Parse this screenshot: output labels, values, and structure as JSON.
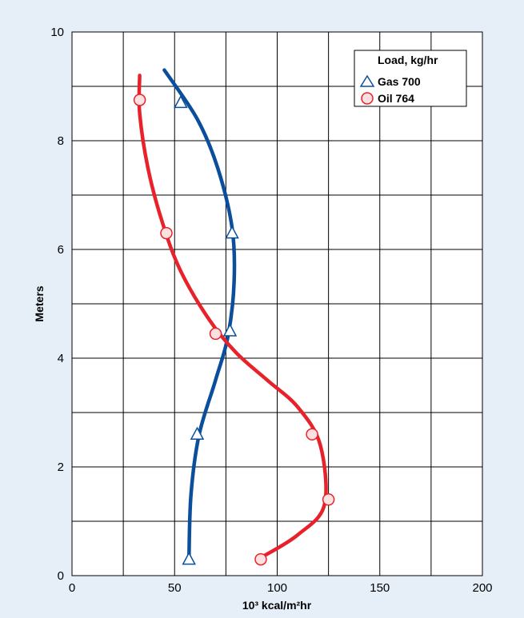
{
  "chart_data": {
    "type": "line",
    "title": "",
    "xlabel": "10³ kcal/m²hr",
    "ylabel": "Meters",
    "xlim": [
      0,
      200
    ],
    "ylim": [
      0,
      10
    ],
    "x_ticks": [
      0,
      50,
      100,
      150,
      200
    ],
    "y_ticks": [
      0,
      2,
      4,
      6,
      8,
      10
    ],
    "grid": true,
    "legend": {
      "title": "Load, kg/hr",
      "placement": "top-right"
    },
    "series": [
      {
        "name": "Gas 700",
        "marker": "triangle",
        "color": "#0b4f9c",
        "points": [
          {
            "x": 57,
            "y": 0.3
          },
          {
            "x": 61,
            "y": 2.6
          },
          {
            "x": 77,
            "y": 4.5
          },
          {
            "x": 78,
            "y": 6.3
          },
          {
            "x": 53,
            "y": 8.7
          }
        ],
        "curve": [
          {
            "x": 57,
            "y": 0.3
          },
          {
            "x": 58,
            "y": 1.5
          },
          {
            "x": 62,
            "y": 2.6
          },
          {
            "x": 70,
            "y": 3.6
          },
          {
            "x": 76,
            "y": 4.4
          },
          {
            "x": 79,
            "y": 5.4
          },
          {
            "x": 78,
            "y": 6.4
          },
          {
            "x": 71,
            "y": 7.5
          },
          {
            "x": 61,
            "y": 8.4
          },
          {
            "x": 45,
            "y": 9.3
          }
        ]
      },
      {
        "name": "Oil 764",
        "marker": "circle",
        "color": "#e8222a",
        "points": [
          {
            "x": 92,
            "y": 0.3
          },
          {
            "x": 125,
            "y": 1.4
          },
          {
            "x": 117,
            "y": 2.6
          },
          {
            "x": 70,
            "y": 4.45
          },
          {
            "x": 46,
            "y": 6.3
          },
          {
            "x": 33,
            "y": 8.75
          }
        ],
        "curve": [
          {
            "x": 93,
            "y": 0.35
          },
          {
            "x": 110,
            "y": 0.75
          },
          {
            "x": 123,
            "y": 1.3
          },
          {
            "x": 121,
            "y": 2.4
          },
          {
            "x": 110,
            "y": 3.1
          },
          {
            "x": 95,
            "y": 3.6
          },
          {
            "x": 80,
            "y": 4.1
          },
          {
            "x": 67,
            "y": 4.7
          },
          {
            "x": 53,
            "y": 5.6
          },
          {
            "x": 44,
            "y": 6.5
          },
          {
            "x": 37,
            "y": 7.5
          },
          {
            "x": 33,
            "y": 8.5
          },
          {
            "x": 33,
            "y": 9.2
          }
        ]
      }
    ]
  }
}
